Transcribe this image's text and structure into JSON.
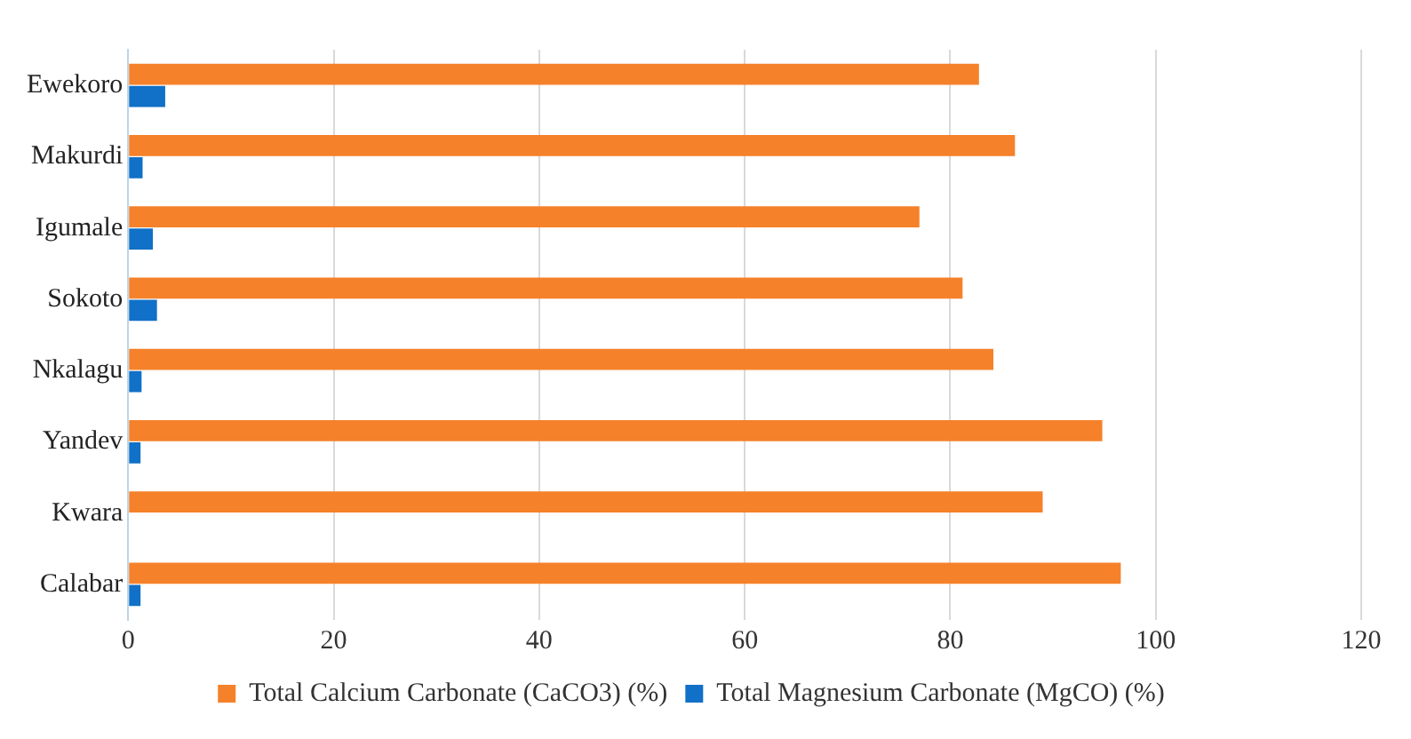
{
  "chart_data": {
    "type": "bar",
    "orientation": "horizontal",
    "categories": [
      "Ewekoro",
      "Makurdi",
      "Igumale",
      "Sokoto",
      "Nkalagu",
      "Yandev",
      "Kwara",
      "Calabar"
    ],
    "series": [
      {
        "name": "Total Calcium Carbonate (CaCO3) (%)",
        "color": "#f5812a",
        "values": [
          82.8,
          86.3,
          77.0,
          81.2,
          84.2,
          94.8,
          89.0,
          96.6
        ]
      },
      {
        "name": "Total Magnesium Carbonate (MgCO) (%)",
        "color": "#1170c7",
        "values": [
          3.6,
          1.4,
          2.4,
          2.8,
          1.3,
          1.2,
          0,
          1.2
        ]
      }
    ],
    "xlim": [
      0,
      120
    ],
    "xticks": [
      0,
      20,
      40,
      60,
      80,
      100,
      120
    ],
    "grid": "x",
    "legend": "bottom"
  }
}
